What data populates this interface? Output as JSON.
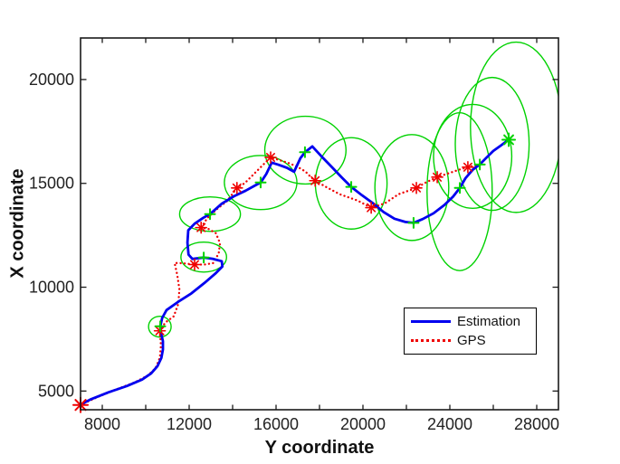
{
  "figure": {
    "background": "#ffffff",
    "axis_color": "#1a1a1a",
    "tick_label_color": "#222222"
  },
  "legend": {
    "position": "lower-right-inside",
    "items": [
      {
        "label": "Estimation",
        "line_style": "solid",
        "color": "#0000ef"
      },
      {
        "label": "GPS",
        "line_style": "dotted",
        "color": "#ef0000"
      }
    ]
  },
  "chart_data": {
    "type": "line",
    "title": "",
    "xlabel": "Y coordinate",
    "ylabel": "X coordinate",
    "xlim": [
      7000,
      29000
    ],
    "ylim": [
      4100,
      22000
    ],
    "grid": false,
    "legend_position": "lower right inside",
    "x_tick_labels": [
      8000,
      12000,
      16000,
      20000,
      24000,
      28000
    ],
    "x_minor_tick_step": 2000,
    "y_tick_labels": [
      5000,
      10000,
      15000,
      20000
    ],
    "colors": {
      "estimation": "#0000ef",
      "gps": "#ef0000",
      "uncertainty_ellipse": "#00d200"
    },
    "series": [
      {
        "name": "Estimation",
        "color": "#0000ef",
        "style": "solid",
        "points": [
          [
            7000,
            4350
          ],
          [
            7450,
            4590
          ],
          [
            8290,
            4940
          ],
          [
            9130,
            5240
          ],
          [
            9830,
            5550
          ],
          [
            10250,
            5850
          ],
          [
            10540,
            6200
          ],
          [
            10720,
            6600
          ],
          [
            10790,
            7000
          ],
          [
            10790,
            7400
          ],
          [
            10700,
            7810
          ],
          [
            10670,
            8120
          ],
          [
            10760,
            8520
          ],
          [
            10960,
            8900
          ],
          [
            11500,
            9300
          ],
          [
            12100,
            9700
          ],
          [
            12700,
            10200
          ],
          [
            13200,
            10650
          ],
          [
            13530,
            11000
          ],
          [
            13500,
            11250
          ],
          [
            13080,
            11370
          ],
          [
            12670,
            11430
          ],
          [
            12150,
            11360
          ],
          [
            11970,
            11570
          ],
          [
            11920,
            12150
          ],
          [
            11960,
            12740
          ],
          [
            12250,
            13060
          ],
          [
            12650,
            13340
          ],
          [
            12960,
            13520
          ],
          [
            13500,
            14020
          ],
          [
            14060,
            14380
          ],
          [
            14600,
            14650
          ],
          [
            15000,
            14880
          ],
          [
            15290,
            15040
          ],
          [
            15550,
            15450
          ],
          [
            15800,
            16000
          ],
          [
            16100,
            15900
          ],
          [
            16500,
            15750
          ],
          [
            16830,
            15560
          ],
          [
            17120,
            16210
          ],
          [
            17330,
            16500
          ],
          [
            17670,
            16780
          ],
          [
            18170,
            16210
          ],
          [
            18600,
            15750
          ],
          [
            19020,
            15290
          ],
          [
            19460,
            14830
          ],
          [
            19950,
            14430
          ],
          [
            20450,
            14050
          ],
          [
            20950,
            13620
          ],
          [
            21450,
            13300
          ],
          [
            21950,
            13140
          ],
          [
            22330,
            13100
          ],
          [
            22750,
            13280
          ],
          [
            23250,
            13560
          ],
          [
            23750,
            13960
          ],
          [
            24150,
            14360
          ],
          [
            24460,
            14780
          ],
          [
            24720,
            15250
          ],
          [
            25050,
            15650
          ],
          [
            25380,
            15910
          ],
          [
            25650,
            16200
          ],
          [
            26000,
            16560
          ],
          [
            26350,
            16820
          ],
          [
            26710,
            17100
          ]
        ],
        "plus_markers": [
          [
            10670,
            8120
          ],
          [
            12670,
            11430
          ],
          [
            12960,
            13520
          ],
          [
            15290,
            15040
          ],
          [
            17330,
            16500
          ],
          [
            19460,
            14830
          ],
          [
            22330,
            13100
          ],
          [
            24460,
            14780
          ],
          [
            25380,
            15910
          ]
        ],
        "end_marker": [
          26710,
          17100
        ]
      },
      {
        "name": "GPS",
        "color": "#ef0000",
        "style": "dotted",
        "points": [
          [
            7000,
            4330
          ],
          [
            7800,
            4720
          ],
          [
            8700,
            5100
          ],
          [
            9500,
            5420
          ],
          [
            10100,
            5750
          ],
          [
            10450,
            6100
          ],
          [
            10650,
            6600
          ],
          [
            10700,
            7200
          ],
          [
            10650,
            7900
          ],
          [
            10900,
            8300
          ],
          [
            11290,
            8600
          ],
          [
            11500,
            9200
          ],
          [
            11550,
            9900
          ],
          [
            11450,
            10600
          ],
          [
            11330,
            11170
          ],
          [
            11750,
            11150
          ],
          [
            12250,
            11090
          ],
          [
            12700,
            11090
          ],
          [
            13100,
            11160
          ],
          [
            13360,
            11620
          ],
          [
            13420,
            12120
          ],
          [
            13230,
            12600
          ],
          [
            12880,
            12810
          ],
          [
            12550,
            12870
          ],
          [
            12830,
            13320
          ],
          [
            13320,
            13800
          ],
          [
            13750,
            14150
          ],
          [
            14200,
            14780
          ],
          [
            14560,
            15010
          ],
          [
            14960,
            15430
          ],
          [
            15380,
            15870
          ],
          [
            15750,
            16250
          ],
          [
            16150,
            16120
          ],
          [
            16550,
            15990
          ],
          [
            16950,
            15820
          ],
          [
            17350,
            15570
          ],
          [
            17600,
            15300
          ],
          [
            17800,
            15130
          ],
          [
            18290,
            14830
          ],
          [
            18930,
            14480
          ],
          [
            19760,
            14170
          ],
          [
            20380,
            13830
          ],
          [
            21010,
            14040
          ],
          [
            21640,
            14480
          ],
          [
            22460,
            14780
          ],
          [
            22890,
            15040
          ],
          [
            23420,
            15300
          ],
          [
            23930,
            15480
          ],
          [
            24400,
            15650
          ],
          [
            24830,
            15780
          ],
          [
            25180,
            15870
          ],
          [
            25500,
            15910
          ]
        ],
        "asterisk_markers": [
          [
            7000,
            4330
          ],
          [
            10650,
            7900
          ],
          [
            12250,
            11090
          ],
          [
            12550,
            12870
          ],
          [
            14200,
            14780
          ],
          [
            15750,
            16250
          ],
          [
            17800,
            15130
          ],
          [
            20380,
            13830
          ],
          [
            22460,
            14780
          ],
          [
            23420,
            15300
          ],
          [
            24830,
            15780
          ]
        ]
      }
    ],
    "uncertainty_ellipses": [
      {
        "cx": 10650,
        "cy": 8100,
        "rx": 520,
        "ry": 500
      },
      {
        "cx": 12670,
        "cy": 11450,
        "rx": 1050,
        "ry": 720
      },
      {
        "cx": 12960,
        "cy": 13520,
        "rx": 1400,
        "ry": 830
      },
      {
        "cx": 15290,
        "cy": 15040,
        "rx": 1670,
        "ry": 1300
      },
      {
        "cx": 17350,
        "cy": 16600,
        "rx": 1870,
        "ry": 1630
      },
      {
        "cx": 19460,
        "cy": 15000,
        "rx": 1650,
        "ry": 2200
      },
      {
        "cx": 22250,
        "cy": 14800,
        "rx": 1700,
        "ry": 2550
      },
      {
        "cx": 24450,
        "cy": 14600,
        "rx": 1500,
        "ry": 3800
      },
      {
        "cx": 25050,
        "cy": 16300,
        "rx": 1800,
        "ry": 2500
      },
      {
        "cx": 25950,
        "cy": 16900,
        "rx": 1700,
        "ry": 3200
      },
      {
        "cx": 27050,
        "cy": 17700,
        "rx": 2100,
        "ry": 4100
      }
    ]
  }
}
